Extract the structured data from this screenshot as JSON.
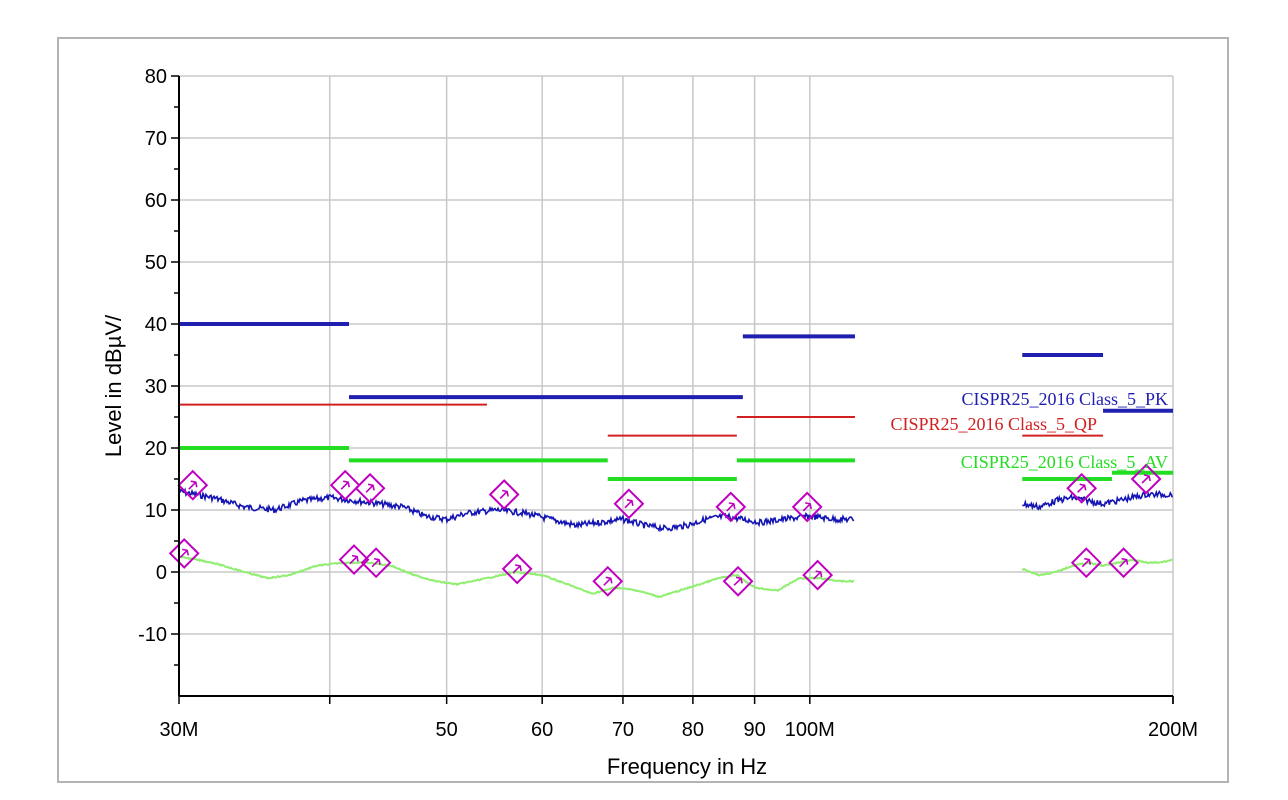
{
  "chart_data": {
    "type": "line",
    "xlabel": "Frequency in Hz",
    "ylabel": "Level in dBµV/",
    "x_scale": "log",
    "xlim": [
      30000000,
      200000000
    ],
    "ylim": [
      -20,
      80
    ],
    "grid": true,
    "y_ticks": [
      {
        "value": 80,
        "label": "80"
      },
      {
        "value": 70,
        "label": "70"
      },
      {
        "value": 60,
        "label": "60"
      },
      {
        "value": 50,
        "label": "50"
      },
      {
        "value": 40,
        "label": "40"
      },
      {
        "value": 30,
        "label": "30"
      },
      {
        "value": 20,
        "label": "20"
      },
      {
        "value": 10,
        "label": "10"
      },
      {
        "value": 0,
        "label": "0"
      },
      {
        "value": -10,
        "label": "-10"
      }
    ],
    "x_ticks": [
      {
        "value": 30000000,
        "label": "30M"
      },
      {
        "value": 40000000,
        "label": ""
      },
      {
        "value": 50000000,
        "label": "50"
      },
      {
        "value": 60000000,
        "label": "60"
      },
      {
        "value": 70000000,
        "label": "70"
      },
      {
        "value": 80000000,
        "label": "80"
      },
      {
        "value": 90000000,
        "label": "90"
      },
      {
        "value": 100000000,
        "label": "100M"
      },
      {
        "value": 200000000,
        "label": "200M"
      }
    ],
    "limit_lines": [
      {
        "series": "pk",
        "x_start": 30000000,
        "x_end": 41500000,
        "y": 40
      },
      {
        "series": "pk",
        "x_start": 41500000,
        "x_end": 88000000,
        "y": 28.2
      },
      {
        "series": "pk",
        "x_start": 88000000,
        "x_end": 109000000,
        "y": 38
      },
      {
        "series": "pk",
        "x_start": 150000000,
        "x_end": 175000000,
        "y": 35
      },
      {
        "series": "pk",
        "x_start": 175000000,
        "x_end": 200000000,
        "y": 26
      },
      {
        "series": "qp",
        "x_start": 30000000,
        "x_end": 54000000,
        "y": 27
      },
      {
        "series": "qp",
        "x_start": 68000000,
        "x_end": 87000000,
        "y": 22
      },
      {
        "series": "qp",
        "x_start": 87000000,
        "x_end": 109000000,
        "y": 25
      },
      {
        "series": "qp",
        "x_start": 150000000,
        "x_end": 175000000,
        "y": 22
      },
      {
        "series": "av",
        "x_start": 30000000,
        "x_end": 41500000,
        "y": 20
      },
      {
        "series": "av",
        "x_start": 41500000,
        "x_end": 68000000,
        "y": 18
      },
      {
        "series": "av",
        "x_start": 68000000,
        "x_end": 87000000,
        "y": 15
      },
      {
        "series": "av",
        "x_start": 87000000,
        "x_end": 109000000,
        "y": 18
      },
      {
        "series": "av",
        "x_start": 150000000,
        "x_end": 178000000,
        "y": 15
      },
      {
        "series": "av",
        "x_start": 178000000,
        "x_end": 200000000,
        "y": 16
      }
    ],
    "legend": [
      {
        "key": "pk",
        "text": "CISPR25_2016 Class_5_PK",
        "color": "#2020b0"
      },
      {
        "key": "qp",
        "text": "CISPR25_2016 Class_5_QP",
        "color": "#d02020"
      },
      {
        "key": "av",
        "text": "CISPR25_2016 Class_5_AV",
        "color": "#22dd22"
      }
    ],
    "series": [
      {
        "key": "pk_trace",
        "color": "#1515b5",
        "segments": [
          {
            "x": [
              30000000,
              32000000,
              34000000,
              36000000,
              38000000,
              40000000,
              42000000,
              44000000,
              46000000,
              48000000,
              50000000,
              52000000,
              55000000,
              58000000,
              61000000,
              64000000,
              67000000,
              70000000,
              73000000,
              76000000,
              79000000,
              82000000,
              85000000,
              88000000,
              91000000,
              95000000,
              100000000,
              105000000,
              109000000
            ],
            "y": [
              13,
              12,
              10.5,
              10,
              11.5,
              12,
              11.5,
              11,
              10.5,
              9,
              8.5,
              9.5,
              10,
              9.5,
              8.5,
              7.5,
              8,
              8.5,
              7.5,
              7,
              7.5,
              8.5,
              9,
              8.5,
              8,
              8.5,
              9,
              8.5,
              8.5
            ]
          },
          {
            "x": [
              150000000,
              155000000,
              160000000,
              165000000,
              170000000,
              175000000,
              180000000,
              185000000,
              190000000,
              195000000,
              200000000
            ],
            "y": [
              11,
              10.5,
              11.5,
              12,
              11.5,
              11,
              11.5,
              12,
              12.5,
              12.5,
              12.5
            ]
          }
        ]
      },
      {
        "key": "av_trace",
        "color": "#90ee70",
        "segments": [
          {
            "x": [
              30000000,
              32000000,
              34000000,
              35500000,
              37000000,
              39000000,
              41000000,
              43000000,
              45000000,
              47000000,
              49000000,
              51000000,
              54000000,
              57000000,
              60000000,
              63000000,
              66000000,
              69000000,
              72000000,
              75000000,
              78000000,
              81000000,
              84000000,
              87000000,
              90000000,
              94000000,
              98000000,
              102000000,
              106000000,
              109000000
            ],
            "y": [
              2.5,
              1.5,
              0,
              -1,
              -0.5,
              1,
              1.5,
              1.5,
              1,
              -0.5,
              -1.5,
              -2,
              -1,
              0,
              -0.5,
              -2,
              -3.5,
              -2.5,
              -3,
              -4,
              -3,
              -2,
              -1,
              -0.5,
              -2.5,
              -3,
              -1,
              -1,
              -1.5,
              -1.5
            ]
          },
          {
            "x": [
              150000000,
              155000000,
              160000000,
              165000000,
              170000000,
              175000000,
              180000000,
              185000000,
              190000000,
              195000000,
              200000000
            ],
            "y": [
              0.5,
              -0.5,
              0,
              1,
              1.5,
              1,
              1.5,
              2,
              1.5,
              1.5,
              2
            ]
          }
        ]
      }
    ],
    "markers": [
      {
        "x": 30800000,
        "y": 14
      },
      {
        "x": 41200000,
        "y": 14
      },
      {
        "x": 43200000,
        "y": 13.5
      },
      {
        "x": 55800000,
        "y": 12.5
      },
      {
        "x": 70800000,
        "y": 11
      },
      {
        "x": 86000000,
        "y": 10.5
      },
      {
        "x": 99500000,
        "y": 10.5
      },
      {
        "x": 168000000,
        "y": 13.5
      },
      {
        "x": 190000000,
        "y": 15
      },
      {
        "x": 30300000,
        "y": 3
      },
      {
        "x": 41900000,
        "y": 2
      },
      {
        "x": 43700000,
        "y": 1.5
      },
      {
        "x": 57200000,
        "y": 0.5
      },
      {
        "x": 68000000,
        "y": -1.5
      },
      {
        "x": 87200000,
        "y": -1.5
      },
      {
        "x": 101500000,
        "y": -0.5
      },
      {
        "x": 169500000,
        "y": 1.5
      },
      {
        "x": 182000000,
        "y": 1.5
      }
    ]
  }
}
